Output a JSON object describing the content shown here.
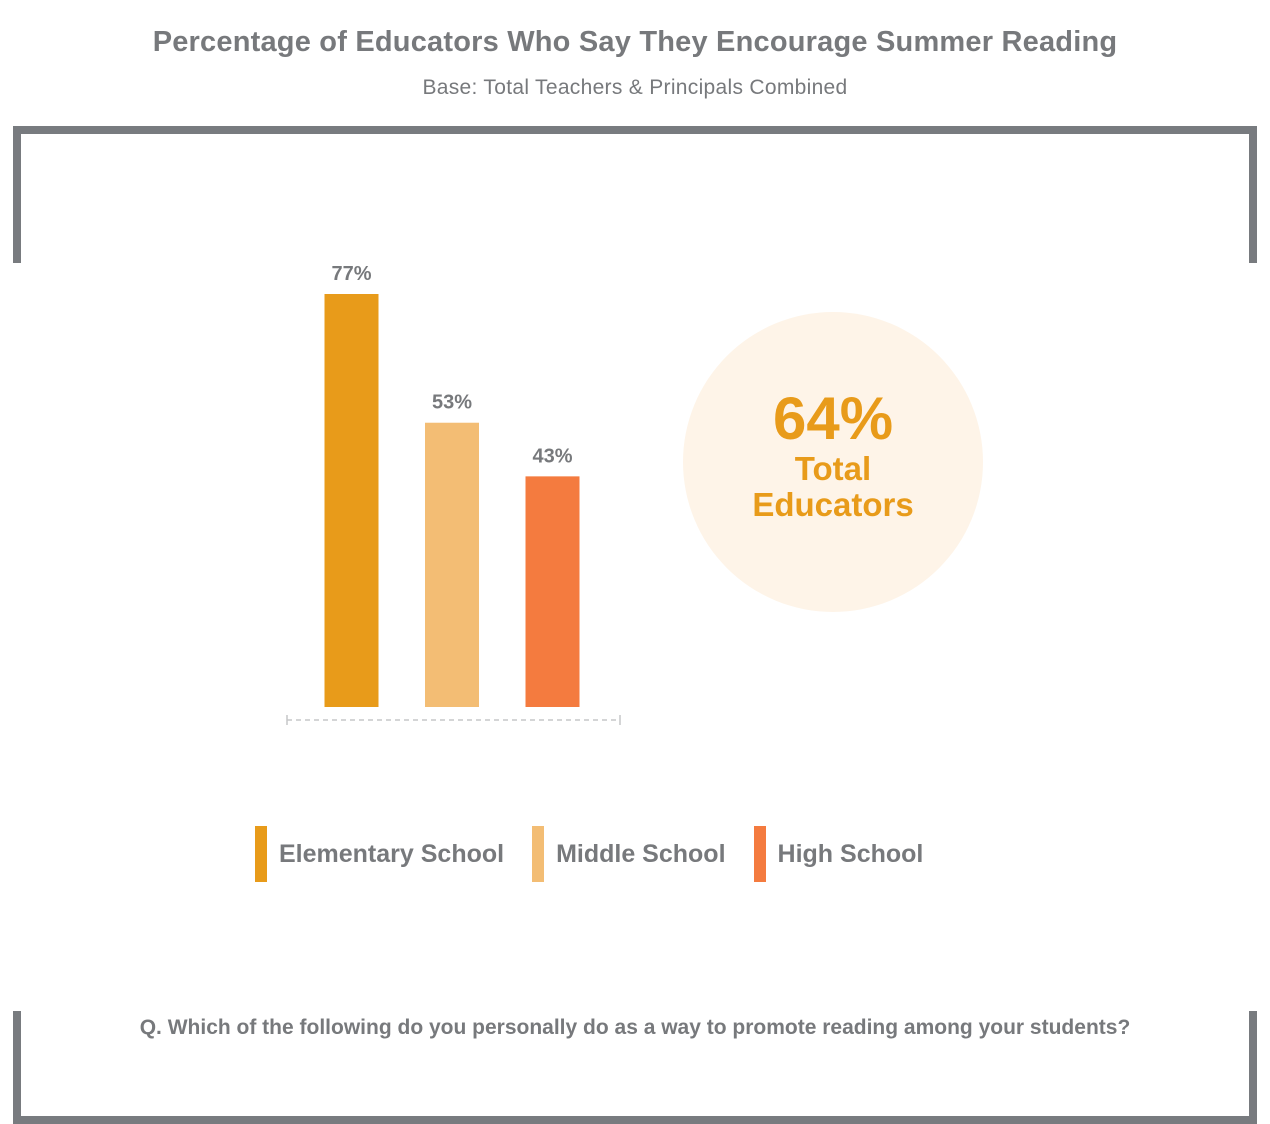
{
  "header": {
    "title": "Percentage of Educators Who Say They Encourage Summer Reading",
    "subtitle": "Base: Total Teachers & Principals Combined"
  },
  "chart_data": {
    "type": "bar",
    "categories": [
      "Elementary School",
      "Middle School",
      "High School"
    ],
    "values": [
      77,
      53,
      43
    ],
    "value_labels": [
      "77%",
      "53%",
      "43%"
    ],
    "colors": [
      "#e89b1a",
      "#f3bd74",
      "#f47b3f"
    ],
    "ylim": [
      0,
      77
    ],
    "grid": false,
    "legend_position": "bottom"
  },
  "callout": {
    "value": "64%",
    "label": "Total Educators",
    "color": "#e89b1a",
    "background": "#fef4e8"
  },
  "legend": {
    "items": [
      {
        "label": "Elementary School",
        "color": "#e89b1a"
      },
      {
        "label": "Middle School",
        "color": "#f3bd74"
      },
      {
        "label": "High School",
        "color": "#f47b3f"
      }
    ]
  },
  "footer": {
    "question": "Q. Which of the following do you personally do as a way to promote reading among your students?"
  }
}
